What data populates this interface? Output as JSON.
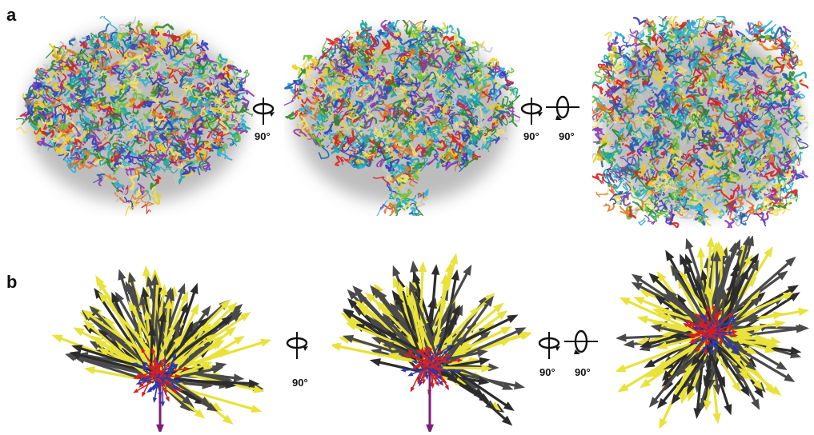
{
  "panels": {
    "a": {
      "label": "a"
    },
    "b": {
      "label": "b"
    }
  },
  "rotations": {
    "a1": {
      "deg": "90°"
    },
    "a2": {
      "deg1": "90°",
      "deg2": "90°"
    },
    "b1": {
      "deg": "90°"
    },
    "b2": {
      "deg1": "90°",
      "deg2": "90°"
    }
  },
  "colors": {
    "arrow_yellow": "#e8e23a",
    "arrow_gray": "#4a4a4a",
    "arrow_red": "#d42020",
    "arrow_blue": "#2a3ab0",
    "arrow_purple": "#7a1f7a"
  }
}
